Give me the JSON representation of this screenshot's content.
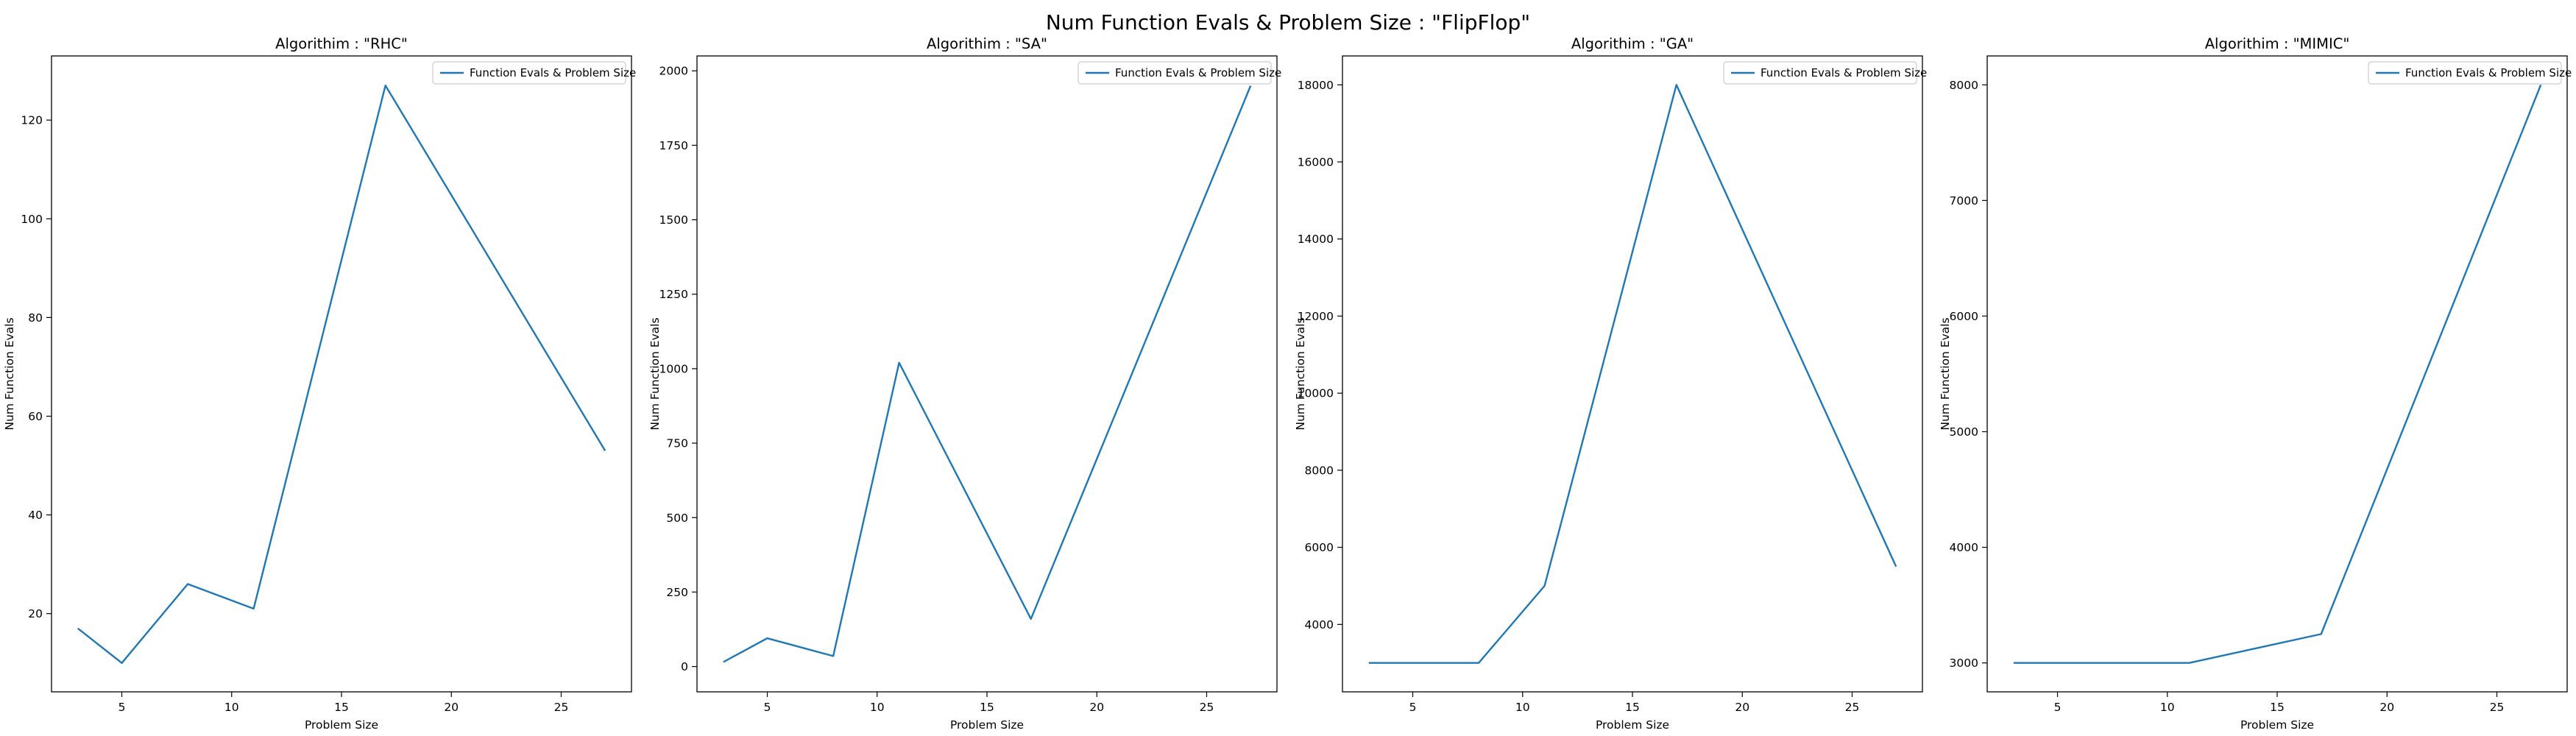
{
  "figure": {
    "suptitle": "Num Function Evals & Problem Size : \"FlipFlop\""
  },
  "chart_data": [
    {
      "type": "line",
      "title": "Algorithim : \"RHC\"",
      "xlabel": "Problem Size",
      "ylabel": "Num Function Evals",
      "xlim": [
        1.8,
        28.2
      ],
      "ylim": [
        4.15,
        133.0
      ],
      "xticks": [
        5,
        10,
        15,
        20,
        25
      ],
      "yticks": [
        20,
        40,
        60,
        80,
        100,
        120
      ],
      "legend_position": "top-right",
      "grid": false,
      "series": [
        {
          "name": "Function Evals & Problem Size",
          "color": "#1f77b4",
          "x": [
            3,
            5,
            8,
            11,
            17,
            27
          ],
          "y": [
            17,
            10,
            26,
            21,
            127,
            53
          ]
        }
      ]
    },
    {
      "type": "line",
      "title": "Algorithim : \"SA\"",
      "xlabel": "Problem Size",
      "ylabel": "Num Function Evals",
      "xlim": [
        1.8,
        28.2
      ],
      "ylim": [
        -85,
        2050
      ],
      "xticks": [
        5,
        10,
        15,
        20,
        25
      ],
      "yticks": [
        0,
        250,
        500,
        750,
        1000,
        1250,
        1500,
        1750,
        2000
      ],
      "legend_position": "top-right",
      "grid": false,
      "series": [
        {
          "name": "Function Evals & Problem Size",
          "color": "#1f77b4",
          "x": [
            3,
            5,
            8,
            11,
            17,
            27
          ],
          "y": [
            15,
            95,
            35,
            1020,
            160,
            1950
          ]
        }
      ]
    },
    {
      "type": "line",
      "title": "Algorithim : \"GA\"",
      "xlabel": "Problem Size",
      "ylabel": "Num Function Evals",
      "xlim": [
        1.8,
        28.2
      ],
      "ylim": [
        2250,
        18750
      ],
      "xticks": [
        5,
        10,
        15,
        20,
        25
      ],
      "yticks": [
        4000,
        6000,
        8000,
        10000,
        12000,
        14000,
        16000,
        18000
      ],
      "legend_position": "top-right",
      "grid": false,
      "series": [
        {
          "name": "Function Evals & Problem Size",
          "color": "#1f77b4",
          "x": [
            3,
            5,
            8,
            11,
            17,
            27
          ],
          "y": [
            3000,
            3000,
            3000,
            5000,
            18000,
            5500
          ]
        }
      ]
    },
    {
      "type": "line",
      "title": "Algorithim : \"MIMIC\"",
      "xlabel": "Problem Size",
      "ylabel": "Num Function Evals",
      "xlim": [
        1.8,
        28.2
      ],
      "ylim": [
        2750,
        8250
      ],
      "xticks": [
        5,
        10,
        15,
        20,
        25
      ],
      "yticks": [
        3000,
        4000,
        5000,
        6000,
        7000,
        8000
      ],
      "legend_position": "top-right",
      "grid": false,
      "series": [
        {
          "name": "Function Evals & Problem Size",
          "color": "#1f77b4",
          "x": [
            3,
            5,
            8,
            11,
            17,
            27
          ],
          "y": [
            3000,
            3000,
            3000,
            3000,
            3250,
            8000
          ]
        }
      ]
    }
  ]
}
